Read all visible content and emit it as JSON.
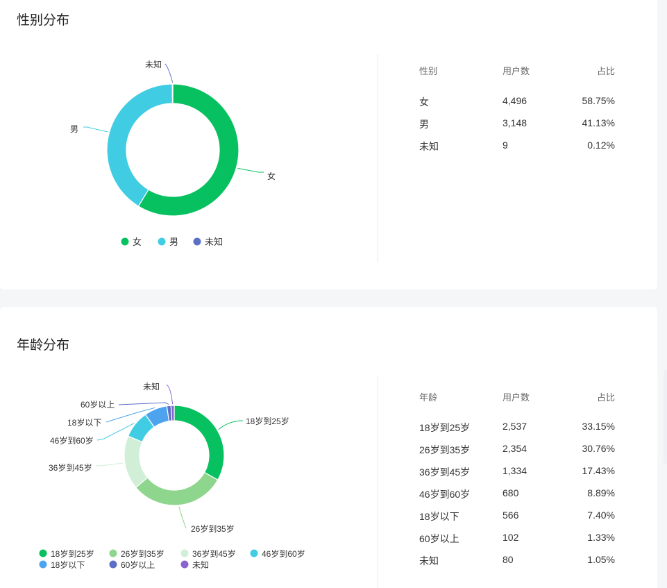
{
  "gender": {
    "title": "性别分布",
    "table": {
      "headers": [
        "性别",
        "用户数",
        "占比"
      ],
      "rows": [
        [
          "女",
          "4,496",
          "58.75%"
        ],
        [
          "男",
          "3,148",
          "41.13%"
        ],
        [
          "未知",
          "9",
          "0.12%"
        ]
      ]
    }
  },
  "age": {
    "title": "年龄分布",
    "table": {
      "headers": [
        "年龄",
        "用户数",
        "占比"
      ],
      "rows": [
        [
          "18岁到25岁",
          "2,537",
          "33.15%"
        ],
        [
          "26岁到35岁",
          "2,354",
          "30.76%"
        ],
        [
          "36岁到45岁",
          "1,334",
          "17.43%"
        ],
        [
          "46岁到60岁",
          "680",
          "8.89%"
        ],
        [
          "18岁以下",
          "566",
          "7.40%"
        ],
        [
          "60岁以上",
          "102",
          "1.33%"
        ],
        [
          "未知",
          "80",
          "1.05%"
        ]
      ]
    }
  },
  "chart_data": [
    {
      "type": "pie",
      "donut": true,
      "title": "性别分布",
      "categories": [
        "女",
        "男",
        "未知"
      ],
      "values": [
        4496,
        3148,
        9
      ],
      "colors": [
        "#07c160",
        "#40cce2",
        "#5b6fc7"
      ],
      "legend_position": "bottom"
    },
    {
      "type": "pie",
      "donut": true,
      "title": "年龄分布",
      "categories": [
        "18岁到25岁",
        "26岁到35岁",
        "36岁到45岁",
        "46岁到60岁",
        "18岁以下",
        "60岁以上",
        "未知"
      ],
      "values": [
        2537,
        2354,
        1334,
        680,
        566,
        102,
        80
      ],
      "colors": [
        "#07c160",
        "#8ed68e",
        "#d1eed6",
        "#40cce2",
        "#4ea3ef",
        "#5b6fc7",
        "#8a63d2"
      ],
      "legend_position": "bottom"
    }
  ]
}
